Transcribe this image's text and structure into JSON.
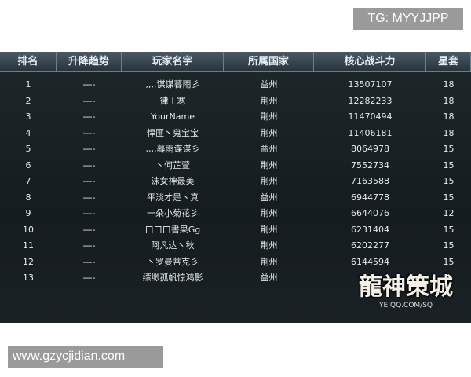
{
  "watermark_top": "TG: MYYJJPP",
  "watermark_bottom": "www.gzycjidian.com",
  "logo": {
    "title": "龍神策城",
    "url": "YE.QQ.COM/SQ"
  },
  "table": {
    "columns": [
      "排名",
      "升降趋势",
      "玩家名字",
      "所属国家",
      "核心战斗力",
      "星套"
    ],
    "rows": [
      [
        "1",
        "----",
        ",,,,谋谋暮雨彡",
        "益州",
        "13507107",
        "18"
      ],
      [
        "2",
        "----",
        "律丨寒",
        "荆州",
        "12282233",
        "18"
      ],
      [
        "3",
        "----",
        "YourName",
        "荆州",
        "11470494",
        "18"
      ],
      [
        "4",
        "----",
        "悍匪丶鬼宝宝",
        "荆州",
        "11406181",
        "18"
      ],
      [
        "5",
        "----",
        ",,,,暮雨谋谋彡",
        "益州",
        "8064978",
        "15"
      ],
      [
        "6",
        "----",
        "丶何芷萱",
        "荆州",
        "7552734",
        "15"
      ],
      [
        "7",
        "----",
        "沫女神最美",
        "荆州",
        "7163588",
        "15"
      ],
      [
        "8",
        "----",
        "平淡才是丶真",
        "益州",
        "6944778",
        "15"
      ],
      [
        "9",
        "----",
        "一朵小菊花彡",
        "荆州",
        "6644076",
        "12"
      ],
      [
        "10",
        "----",
        "口口口書果Gg",
        "荆州",
        "6231404",
        "15"
      ],
      [
        "11",
        "----",
        "阿凡达丶秋",
        "荆州",
        "6202277",
        "15"
      ],
      [
        "12",
        "----",
        "丶罗曼蒂克彡",
        "荆州",
        "6144594",
        "15"
      ],
      [
        "13",
        "----",
        "缥缈孤帆惊鸿影",
        "益州"
      ]
    ]
  }
}
